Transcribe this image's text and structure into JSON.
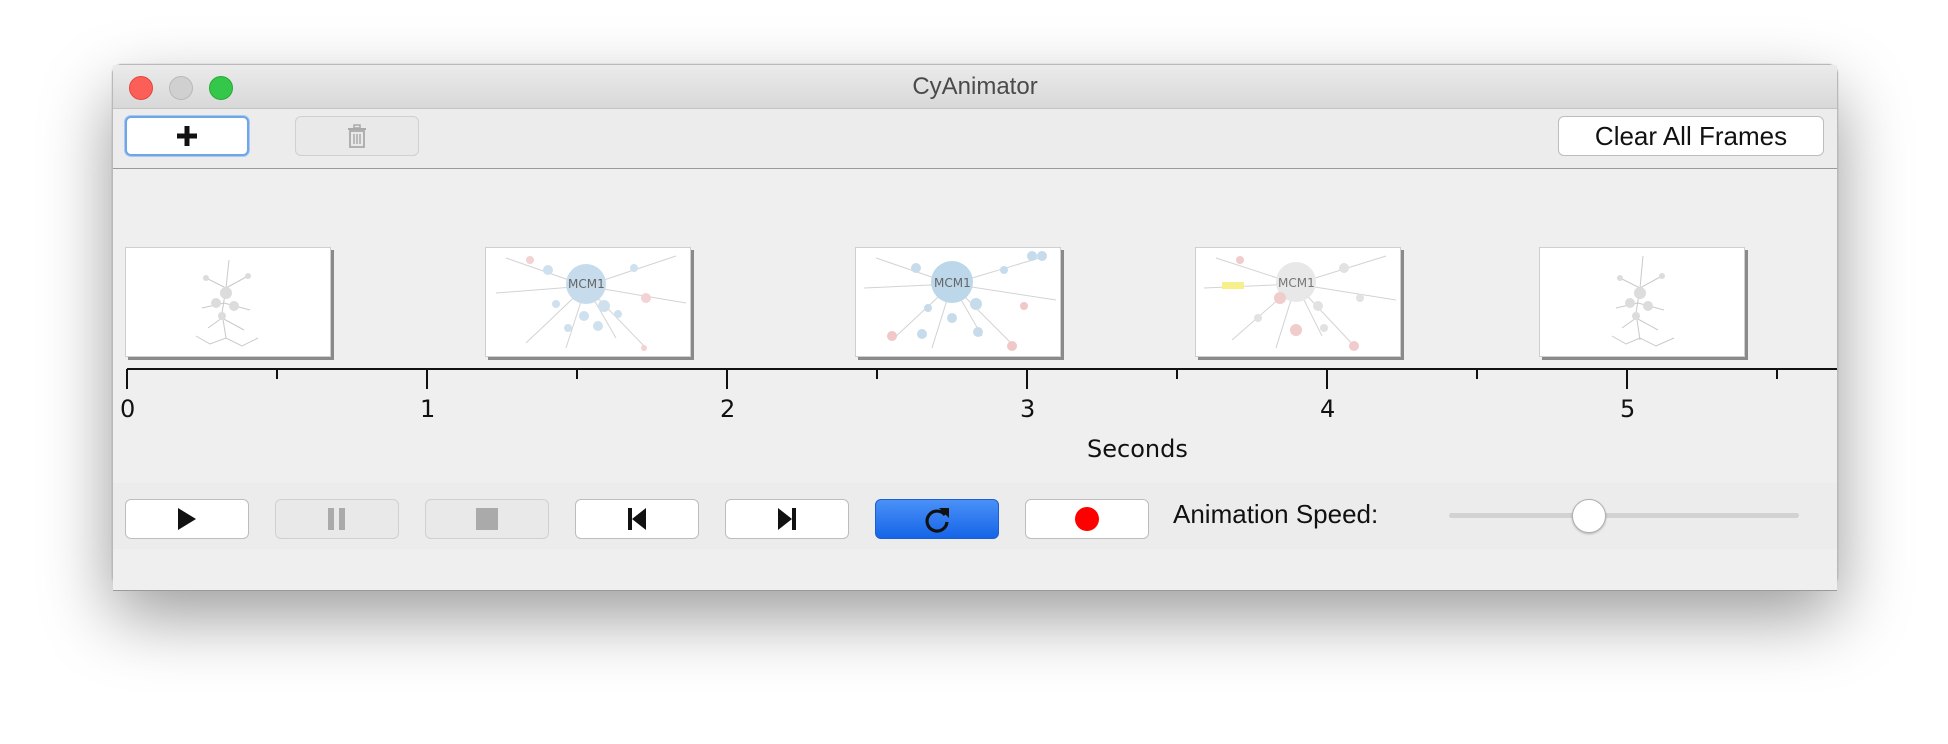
{
  "window": {
    "title": "CyAnimator"
  },
  "toolbar": {
    "add_icon": "plus-icon",
    "delete_icon": "trash-icon",
    "clear_label": "Clear All Frames"
  },
  "timeline": {
    "frame_thumbnail_labels": [
      "MCM1",
      "MCM1",
      "MCM1"
    ],
    "axis_ticks": [
      "0",
      "1",
      "2",
      "3",
      "4",
      "5"
    ],
    "axis_label": "Seconds"
  },
  "controls": {
    "play_icon": "play-icon",
    "pause_icon": "pause-icon",
    "stop_icon": "stop-icon",
    "step_back_icon": "step-back-icon",
    "step_forward_icon": "step-forward-icon",
    "loop_icon": "loop-icon",
    "record_icon": "record-icon",
    "speed_label": "Animation Speed:",
    "speed_value_fraction": 0.4
  },
  "colors": {
    "accent_blue": "#1565e7",
    "record_red": "#ff0000",
    "close": "#fc5f57",
    "maximize": "#34c749"
  }
}
